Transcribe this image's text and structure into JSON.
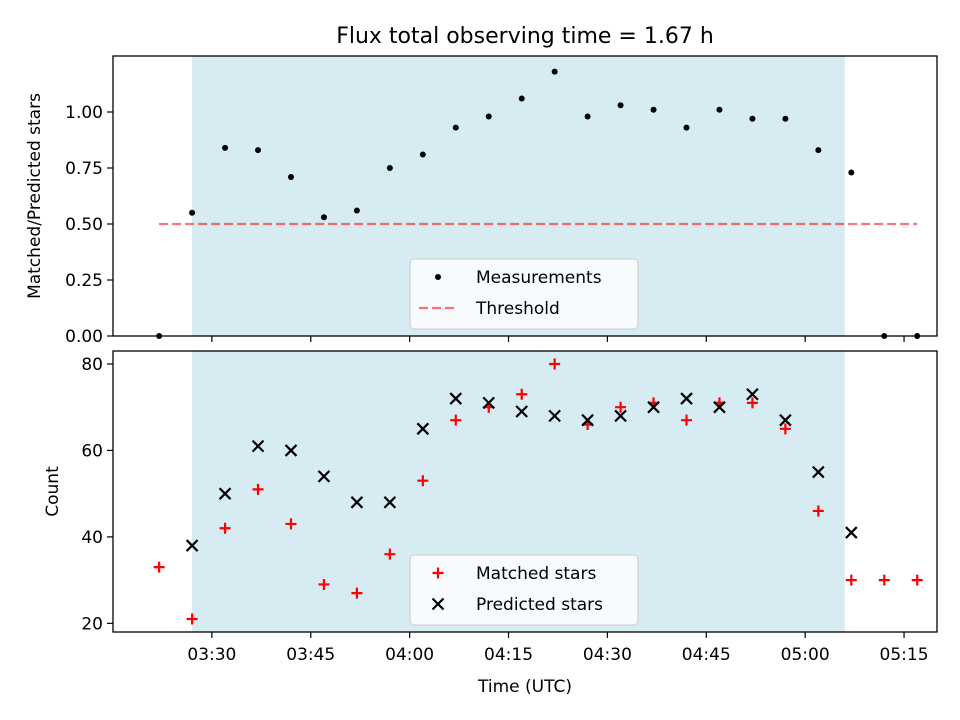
{
  "title": "Flux total observing time = 1.67 h",
  "colors": {
    "shade": "#add8e6",
    "measurement": "#000000",
    "threshold": "#ff0000",
    "matched": "#ff0000",
    "predicted": "#000000"
  },
  "chart_data": [
    {
      "type": "scatter",
      "ylabel": "Matched/Predicted stars",
      "xlim": [
        "03:15",
        "05:20"
      ],
      "ylim": [
        0.0,
        1.25
      ],
      "yticks": [
        "0.00",
        "0.25",
        "0.50",
        "0.75",
        "1.00"
      ],
      "ytick_values": [
        0.0,
        0.25,
        0.5,
        0.75,
        1.0
      ],
      "shaded_span": [
        "03:27",
        "05:06"
      ],
      "legend_loc": "lower center",
      "series": [
        {
          "name": "Measurements",
          "marker": "dot",
          "x": [
            "03:22",
            "03:27",
            "03:32",
            "03:37",
            "03:42",
            "03:47",
            "03:52",
            "03:57",
            "04:02",
            "04:07",
            "04:12",
            "04:17",
            "04:22",
            "04:27",
            "04:32",
            "04:37",
            "04:42",
            "04:47",
            "04:52",
            "04:57",
            "05:02",
            "05:07",
            "05:12",
            "05:17"
          ],
          "y": [
            0.0,
            0.55,
            0.84,
            0.83,
            0.71,
            0.53,
            0.56,
            0.75,
            0.81,
            0.93,
            0.98,
            1.06,
            1.18,
            0.98,
            1.03,
            1.01,
            0.93,
            1.01,
            0.97,
            0.97,
            0.83,
            0.73,
            0.0,
            0.0
          ]
        },
        {
          "name": "Threshold",
          "marker": "dashed-line",
          "x": [
            "03:22",
            "05:17"
          ],
          "y": [
            0.5,
            0.5
          ]
        }
      ]
    },
    {
      "type": "scatter",
      "ylabel": "Count",
      "xlabel": "Time (UTC)",
      "xlim": [
        "03:15",
        "05:20"
      ],
      "xticks": [
        "03:30",
        "03:45",
        "04:00",
        "04:15",
        "04:30",
        "04:45",
        "05:00",
        "05:15"
      ],
      "ylim": [
        18,
        83
      ],
      "yticks": [
        "20",
        "40",
        "60",
        "80"
      ],
      "ytick_values": [
        20,
        40,
        60,
        80
      ],
      "shaded_span": [
        "03:27",
        "05:06"
      ],
      "legend_loc": "lower center",
      "series": [
        {
          "name": "Matched stars",
          "marker": "plus",
          "x": [
            "03:22",
            "03:27",
            "03:32",
            "03:37",
            "03:42",
            "03:47",
            "03:52",
            "03:57",
            "04:02",
            "04:07",
            "04:12",
            "04:17",
            "04:22",
            "04:27",
            "04:32",
            "04:37",
            "04:42",
            "04:47",
            "04:52",
            "04:57",
            "05:02",
            "05:07",
            "05:12",
            "05:17"
          ],
          "y": [
            33,
            21,
            42,
            51,
            43,
            29,
            27,
            36,
            53,
            67,
            70,
            73,
            80,
            66,
            70,
            71,
            67,
            71,
            71,
            65,
            46,
            30,
            30,
            30
          ]
        },
        {
          "name": "Predicted stars",
          "marker": "x",
          "x": [
            "03:27",
            "03:32",
            "03:37",
            "03:42",
            "03:47",
            "03:52",
            "03:57",
            "04:02",
            "04:07",
            "04:12",
            "04:17",
            "04:22",
            "04:27",
            "04:32",
            "04:37",
            "04:42",
            "04:47",
            "04:52",
            "04:57",
            "05:02",
            "05:07"
          ],
          "y": [
            38,
            50,
            61,
            60,
            54,
            48,
            48,
            65,
            72,
            71,
            69,
            68,
            67,
            68,
            70,
            72,
            70,
            73,
            67,
            55,
            41
          ]
        }
      ]
    }
  ]
}
